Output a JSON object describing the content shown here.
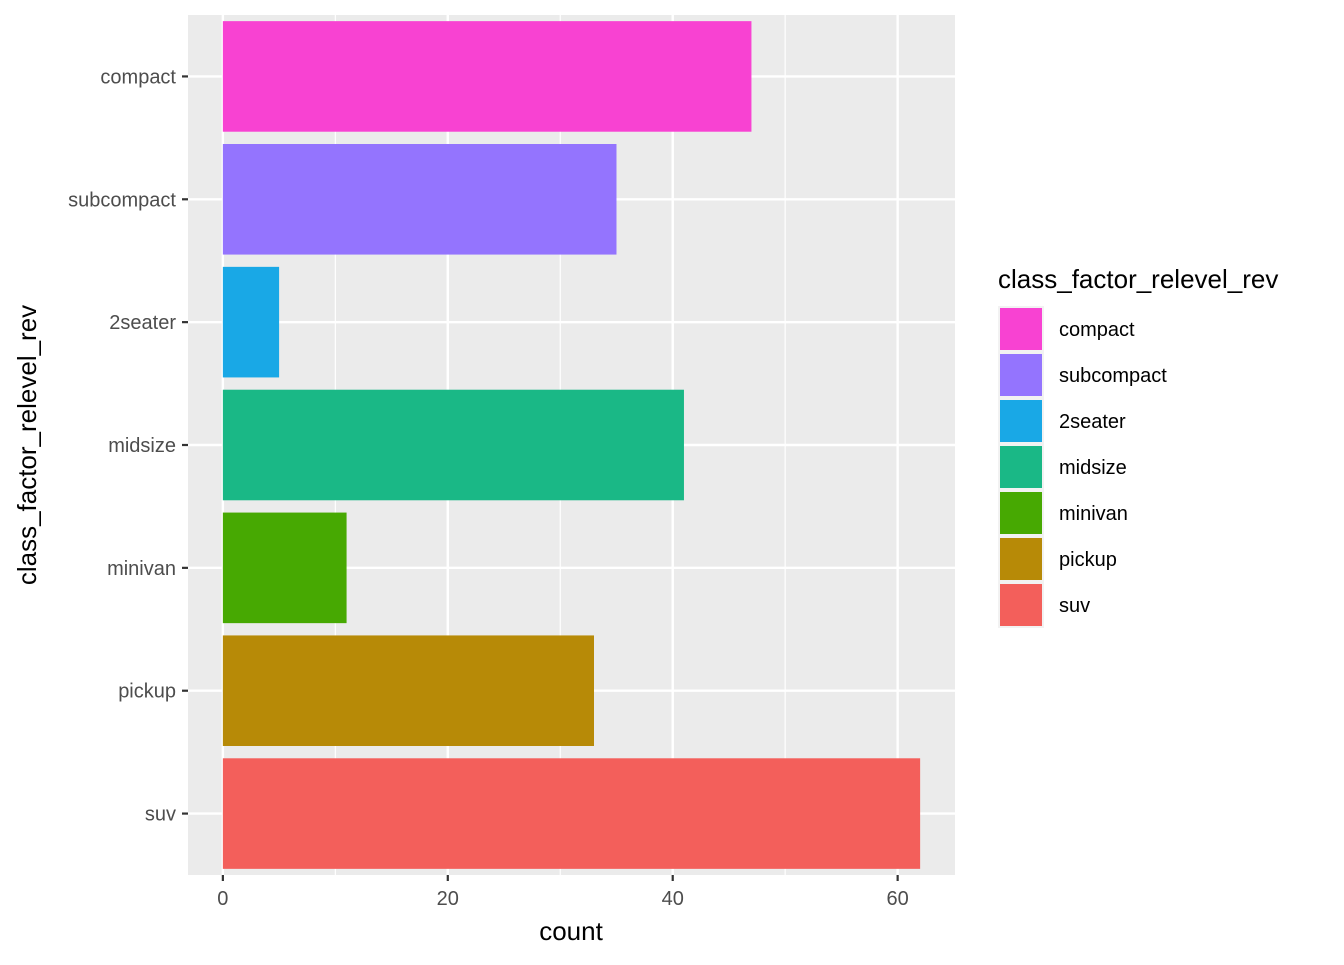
{
  "chart_data": {
    "type": "bar",
    "orientation": "horizontal",
    "categories": [
      "compact",
      "subcompact",
      "2seater",
      "midsize",
      "minivan",
      "pickup",
      "suv"
    ],
    "values": [
      47,
      35,
      5,
      41,
      11,
      33,
      62
    ],
    "colors": [
      "#F842D2",
      "#9474FE",
      "#19A8E6",
      "#1AB886",
      "#47A902",
      "#B78A07",
      "#F35F5B"
    ],
    "xlabel": "count",
    "ylabel": "class_factor_relevel_rev",
    "xlim": [
      -3.1,
      65.1
    ],
    "xticks": [
      0,
      20,
      40,
      60
    ],
    "grid": true,
    "legend": {
      "title": "class_factor_relevel_rev",
      "position": "right",
      "entries": [
        "compact",
        "subcompact",
        "2seater",
        "midsize",
        "minivan",
        "pickup",
        "suv"
      ]
    }
  }
}
